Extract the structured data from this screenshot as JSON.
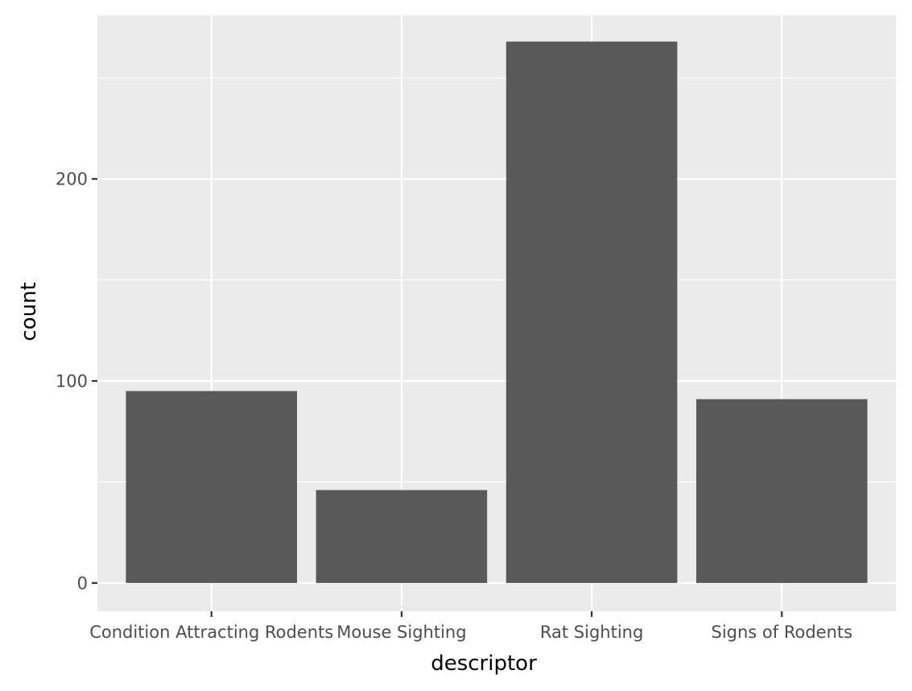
{
  "chart_data": {
    "type": "bar",
    "categories": [
      "Condition Attracting Rodents",
      "Mouse Sighting",
      "Rat Sighting",
      "Signs of Rodents"
    ],
    "values": [
      95,
      46,
      268,
      91
    ],
    "xlabel": "descriptor",
    "ylabel": "count",
    "ylim": [
      -14,
      281
    ],
    "yticks": [
      0,
      100,
      200
    ],
    "ytick_labels": [
      "0",
      "100",
      "200"
    ],
    "y_minor_ticks": [
      50,
      150,
      250
    ],
    "grid": true,
    "colors": {
      "panel_background": "#ebebeb",
      "grid": "#ffffff",
      "bar_fill": "#595959",
      "tick_mark": "#333333",
      "tick_label": "#4d4d4d",
      "axis_title": "#000000"
    }
  }
}
